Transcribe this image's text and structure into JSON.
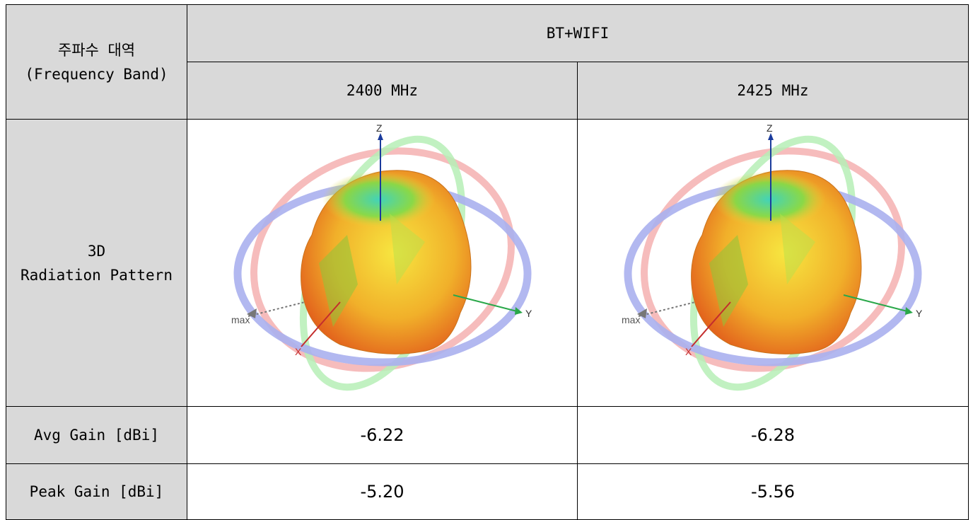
{
  "table": {
    "header_label_ko": "주파수 대역",
    "header_label_en": "(Frequency Band)",
    "band_title": "BT+WIFI",
    "columns": [
      {
        "freq": "2400 MHz",
        "avg_gain": "-6.22",
        "peak_gain": "-5.20"
      },
      {
        "freq": "2425 MHz",
        "avg_gain": "-6.28",
        "peak_gain": "-5.56"
      }
    ],
    "row_3d_line1": "3D",
    "row_3d_line2": "Radiation Pattern",
    "row_avg": "Avg Gain [dBi]",
    "row_peak": "Peak Gain [dBi]"
  },
  "pattern_plot": {
    "axis_z": "Z",
    "axis_y": "Y",
    "axis_x": "X",
    "max_label": "max"
  },
  "colors": {
    "header_gray": "#d9d9d9",
    "ring_blue": "#aab0ee",
    "ring_red": "#f4b0b0",
    "ring_green": "#b6eeb6"
  }
}
